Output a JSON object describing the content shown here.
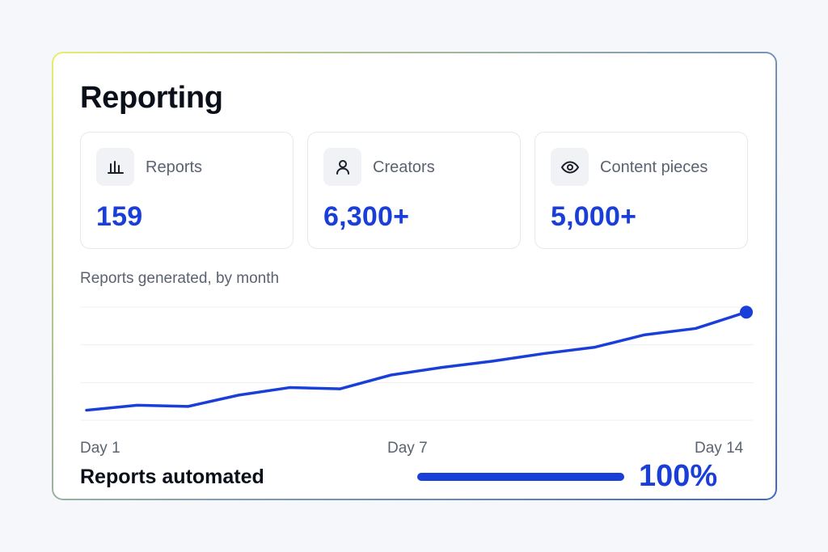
{
  "card": {
    "title": "Reporting"
  },
  "stats": [
    {
      "icon": "bar-chart-icon",
      "label": "Reports",
      "value": "159"
    },
    {
      "icon": "user-icon",
      "label": "Creators",
      "value": "6,300+"
    },
    {
      "icon": "eye-icon",
      "label": "Content pieces",
      "value": "5,000+"
    }
  ],
  "colors": {
    "accent": "#1a3fd9",
    "muted_text": "#5b6270",
    "border": "#e6e8ec"
  },
  "chart_data": {
    "type": "line",
    "title": "Reports generated, by month",
    "x": [
      1,
      2,
      3,
      4,
      5,
      6,
      7,
      8,
      9,
      10,
      11,
      12,
      13,
      14
    ],
    "tick_labels": [
      "Day 1",
      "Day 7",
      "Day 14"
    ],
    "series": [
      {
        "values": [
          8,
          12,
          11,
          20,
          26,
          25,
          36,
          42,
          47,
          53,
          58,
          68,
          73,
          86
        ]
      }
    ],
    "ylim": [
      0,
      90
    ],
    "grid": true,
    "end_marker": true
  },
  "automation": {
    "label": "Reports automated",
    "value_text": "100%",
    "fraction": 1.0
  }
}
